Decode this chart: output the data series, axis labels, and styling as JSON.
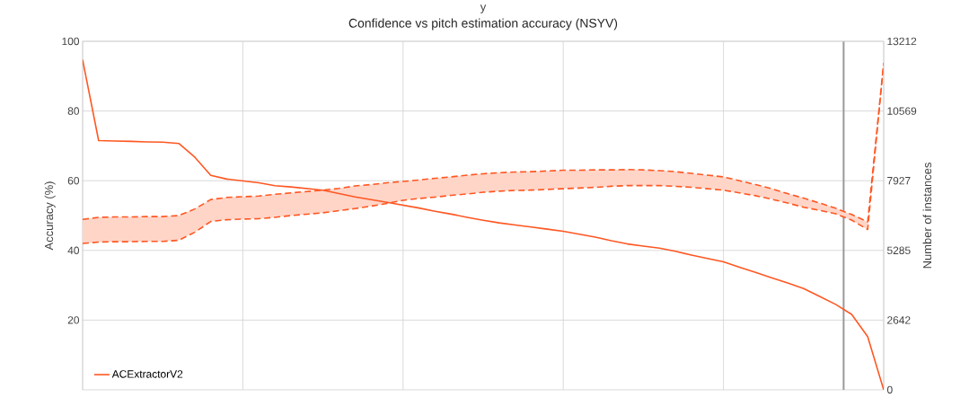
{
  "chart_data": {
    "type": "line",
    "title": "Confidence vs pitch estimation accuracy (NSYV)",
    "annotations": [
      "y"
    ],
    "ylabel": "Accuracy (%)",
    "y2label": "Number of instances",
    "categories": [
      null,
      null,
      null,
      null,
      null,
      null,
      null,
      null,
      null,
      null,
      null,
      null,
      null,
      null,
      null,
      null,
      null,
      null,
      null,
      null,
      null,
      null,
      null,
      null,
      null,
      null,
      null,
      null,
      null,
      null,
      null,
      null,
      null,
      null,
      null,
      null,
      null,
      null,
      null,
      null,
      null,
      null,
      null,
      null,
      null,
      null,
      null,
      null,
      null,
      null,
      null
    ],
    "ylim": [
      0,
      100
    ],
    "yticks": [
      20,
      40,
      60,
      80,
      100
    ],
    "y2lim": [
      0,
      13212
    ],
    "y2ticks": [
      0,
      2642,
      5285,
      7927,
      10569,
      13212
    ],
    "grid": true,
    "legend": "bottom left",
    "series": [
      {
        "name": "ACExtractorV2",
        "axis": "y2",
        "color": "#ff5722",
        "line_style": "solid",
        "values": [
          12510,
          9450,
          9430,
          9420,
          9400,
          9390,
          9340,
          8820,
          8130,
          7990,
          7920,
          7850,
          7740,
          7690,
          7630,
          7570,
          7440,
          7310,
          7210,
          7110,
          7000,
          6890,
          6770,
          6660,
          6540,
          6430,
          6330,
          6250,
          6170,
          6090,
          6010,
          5900,
          5790,
          5650,
          5530,
          5450,
          5370,
          5250,
          5110,
          4980,
          4850,
          4650,
          4450,
          4250,
          4050,
          3840,
          3540,
          3240,
          2860,
          2020,
          0
        ]
      },
      {
        "axis": "y",
        "color": "#ff5722",
        "line_style": "dashed",
        "values": [
          48.9,
          49.5,
          49.6,
          49.6,
          49.7,
          49.7,
          50.0,
          51.9,
          54.6,
          55.2,
          55.4,
          55.6,
          56.1,
          56.5,
          56.9,
          57.3,
          57.8,
          58.5,
          58.9,
          59.4,
          59.8,
          60.2,
          60.7,
          61.1,
          61.6,
          62.0,
          62.3,
          62.5,
          62.6,
          62.8,
          63.0,
          63.0,
          63.1,
          63.1,
          63.2,
          63.1,
          62.9,
          62.6,
          62.1,
          61.6,
          61.1,
          60.0,
          58.9,
          57.7,
          56.3,
          55.0,
          53.6,
          52.1,
          50.3,
          48.2,
          93.8
        ]
      },
      {
        "axis": "y",
        "color": "#ff5722",
        "line_style": "dashed",
        "values": [
          42.0,
          42.4,
          42.5,
          42.5,
          42.6,
          42.6,
          42.9,
          45.2,
          48.3,
          48.8,
          49.0,
          49.1,
          49.5,
          50.0,
          50.4,
          50.8,
          51.4,
          52.0,
          52.7,
          53.5,
          54.4,
          54.9,
          55.3,
          55.8,
          56.2,
          56.7,
          57.0,
          57.2,
          57.3,
          57.5,
          57.7,
          57.9,
          58.1,
          58.4,
          58.6,
          58.6,
          58.6,
          58.4,
          58.1,
          57.7,
          57.3,
          56.5,
          55.7,
          54.7,
          53.6,
          52.4,
          51.5,
          50.5,
          48.7,
          46.0,
          93.8
        ]
      }
    ]
  }
}
